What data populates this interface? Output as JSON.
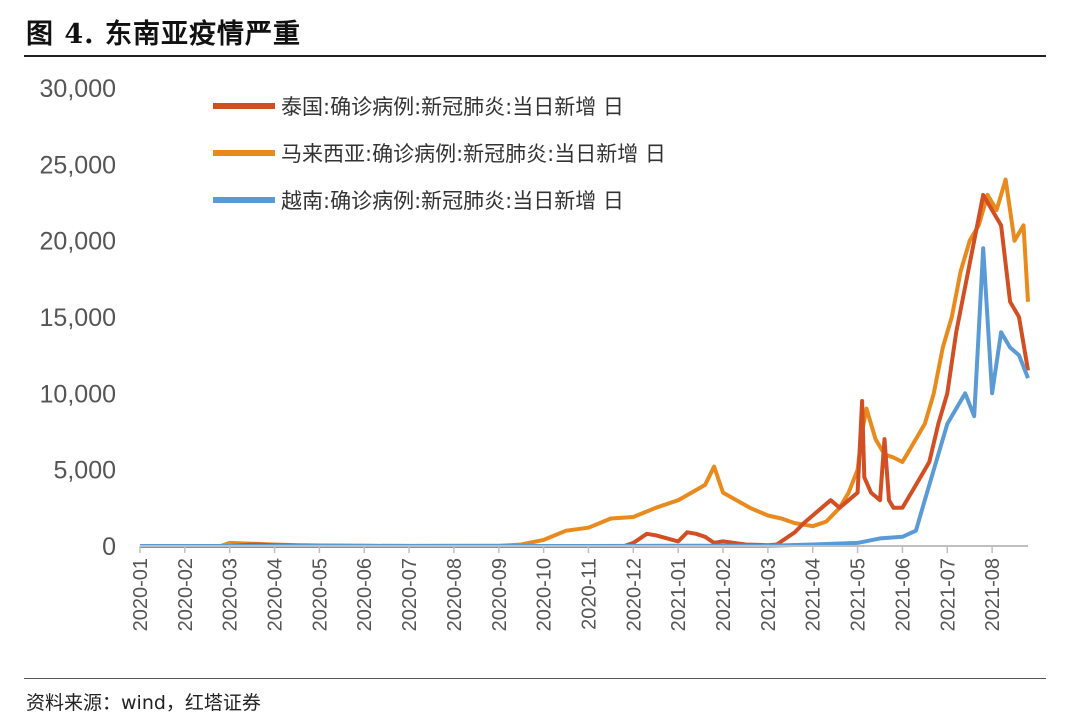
{
  "figure": {
    "title": "图 4. 东南亚疫情严重",
    "source": "资料来源：wind，红塔证券"
  },
  "chart_data": {
    "type": "line",
    "ylim": [
      0,
      30000
    ],
    "yticks": [
      "0",
      "5,000",
      "10,000",
      "15,000",
      "20,000",
      "25,000",
      "30,000"
    ],
    "ytick_values": [
      0,
      5000,
      10000,
      15000,
      20000,
      25000,
      30000
    ],
    "x_range": [
      0,
      19.8
    ],
    "xticks": [
      "2020-01",
      "2020-02",
      "2020-03",
      "2020-04",
      "2020-05",
      "2020-06",
      "2020-07",
      "2020-08",
      "2020-09",
      "2020-10",
      "2020-11",
      "2020-12",
      "2021-01",
      "2021-02",
      "2021-03",
      "2021-04",
      "2021-05",
      "2021-06",
      "2021-07",
      "2021-08"
    ],
    "legend_position": "top-center",
    "grid": false,
    "series": [
      {
        "name": "泰国:确诊病例:新冠肺炎:当日新增 日",
        "color": "#D24E23",
        "x": [
          0,
          2,
          2.5,
          3,
          3.5,
          4,
          5,
          6,
          7,
          8,
          9,
          10,
          10.8,
          11,
          11.1,
          11.3,
          11.5,
          12,
          12.2,
          12.4,
          12.6,
          12.8,
          13,
          13.5,
          14,
          14.2,
          14.4,
          14.6,
          14.8,
          15,
          15.2,
          15.4,
          15.6,
          15.8,
          16,
          16.1,
          16.15,
          16.3,
          16.5,
          16.6,
          16.7,
          16.8,
          17,
          17.2,
          17.4,
          17.6,
          17.8,
          18,
          18.2,
          18.4,
          18.6,
          18.8,
          19,
          19.2,
          19.4,
          19.6,
          19.8
        ],
        "y": [
          0,
          0,
          100,
          50,
          30,
          10,
          5,
          3,
          2,
          5,
          0,
          0,
          0,
          200,
          400,
          800,
          700,
          300,
          900,
          800,
          600,
          200,
          300,
          100,
          50,
          100,
          500,
          900,
          1500,
          2000,
          2500,
          3000,
          2500,
          3000,
          3500,
          9500,
          4500,
          3500,
          3000,
          7000,
          3000,
          2500,
          2500,
          3500,
          4500,
          5500,
          8000,
          10000,
          14000,
          17000,
          20000,
          23000,
          22000,
          21000,
          16000,
          15000,
          11500
        ]
      },
      {
        "name": "马来西亚:确诊病例:新冠肺炎:当日新增 日",
        "color": "#E98A1C",
        "x": [
          0,
          1.8,
          2,
          2.5,
          3,
          3.5,
          4,
          5,
          6,
          7,
          8,
          8.5,
          9,
          9.5,
          10,
          10.5,
          11,
          11.5,
          12,
          12.3,
          12.6,
          12.8,
          13,
          13.3,
          13.6,
          14,
          14.3,
          14.6,
          15,
          15.3,
          15.6,
          15.8,
          16,
          16.1,
          16.2,
          16.4,
          16.6,
          16.8,
          17,
          17.2,
          17.5,
          17.7,
          17.9,
          18.1,
          18.3,
          18.5,
          18.7,
          18.9,
          19.1,
          19.3,
          19.5,
          19.7,
          19.8
        ],
        "y": [
          0,
          0,
          200,
          150,
          100,
          50,
          30,
          10,
          5,
          10,
          5,
          100,
          400,
          1000,
          1200,
          1800,
          1900,
          2500,
          3000,
          3500,
          4000,
          5200,
          3500,
          3000,
          2500,
          2000,
          1800,
          1500,
          1300,
          1600,
          2500,
          3500,
          5000,
          7500,
          9000,
          7000,
          6000,
          5800,
          5500,
          6500,
          8000,
          10000,
          13000,
          15000,
          18000,
          20000,
          21000,
          23000,
          22000,
          24000,
          20000,
          21000,
          16000
        ]
      },
      {
        "name": "越南:确诊病例:新冠肺炎:当日新增 日",
        "color": "#5B9BD5",
        "x": [
          0,
          2,
          4,
          6,
          8,
          10,
          12,
          14,
          15,
          16,
          16.5,
          17,
          17.3,
          17.5,
          17.7,
          18,
          18.2,
          18.4,
          18.6,
          18.8,
          19,
          19.2,
          19.4,
          19.6,
          19.8
        ],
        "y": [
          0,
          0,
          0,
          0,
          0,
          0,
          10,
          20,
          100,
          200,
          500,
          600,
          1000,
          3000,
          5000,
          8000,
          9000,
          10000,
          8500,
          19500,
          10000,
          14000,
          13000,
          12500,
          11000
        ]
      }
    ]
  }
}
